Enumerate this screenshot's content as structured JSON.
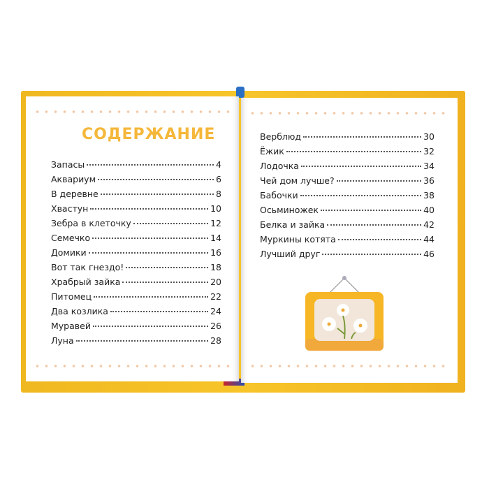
{
  "left_page": {
    "title": "СОДЕРЖАНИЕ",
    "entries": [
      {
        "title": "Запасы",
        "page": "4"
      },
      {
        "title": "Аквариум",
        "page": "6"
      },
      {
        "title": "В деревне",
        "page": "8"
      },
      {
        "title": "Хвастун",
        "page": "10"
      },
      {
        "title": "Зебра в клеточку",
        "page": "12"
      },
      {
        "title": "Семечко",
        "page": "14"
      },
      {
        "title": "Домики",
        "page": "16"
      },
      {
        "title": "Вот так гнездо!",
        "page": "18"
      },
      {
        "title": "Храбрый зайка",
        "page": "20"
      },
      {
        "title": "Питомец",
        "page": "22"
      },
      {
        "title": "Два козлика",
        "page": "24"
      },
      {
        "title": "Муравей",
        "page": "26"
      },
      {
        "title": "Луна",
        "page": "28"
      }
    ]
  },
  "right_page": {
    "entries": [
      {
        "title": "Верблюд",
        "page": "30"
      },
      {
        "title": "Ёжик",
        "page": "32"
      },
      {
        "title": "Лодочка",
        "page": "34"
      },
      {
        "title": "Чей дом лучше?",
        "page": "36"
      },
      {
        "title": "Бабочки",
        "page": "38"
      },
      {
        "title": "Осьминожек",
        "page": "40"
      },
      {
        "title": "Белка и зайка",
        "page": "42"
      },
      {
        "title": "Муркины котята",
        "page": "44"
      },
      {
        "title": "Лучший друг",
        "page": "46"
      }
    ],
    "illustration": "framed-daisies-picture"
  },
  "colors": {
    "cover": "#f7c52a",
    "title": "#f5b73a",
    "dots": "#f1c9a8"
  }
}
